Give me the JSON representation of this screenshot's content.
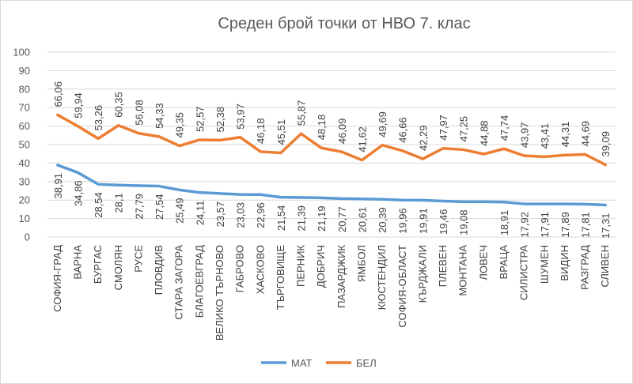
{
  "chart_data": {
    "type": "line",
    "title": "Среден брой точки от НВО 7. клас",
    "categories": [
      "СОФИЯ-ГРАД",
      "ВАРНА",
      "БУРГАС",
      "СМОЛЯН",
      "РУСЕ",
      "ПЛОВДИВ",
      "СТАРА ЗАГОРА",
      "БЛАГОЕВГРАД",
      "ВЕЛИКО ТЪРНОВО",
      "ГАБРОВО",
      "ХАСКОВО",
      "ТЪРГОВИЩЕ",
      "ПЕРНИК",
      "ДОБРИЧ",
      "ПАЗАРДЖИК",
      "ЯМБОЛ",
      "КЮСТЕНДИЛ",
      "СОФИЯ-ОБЛАСТ",
      "КЪРДЖАЛИ",
      "ПЛЕВЕН",
      "МОНТАНА",
      "ЛОВЕЧ",
      "ВРАЦА",
      "СИЛИСТРА",
      "ШУМЕН",
      "ВИДИН",
      "РАЗГРАД",
      "СЛИВЕН"
    ],
    "series": [
      {
        "name": "МАТ",
        "color": "#5b9bd5",
        "values": [
          38.91,
          34.86,
          28.54,
          28.1,
          27.79,
          27.54,
          25.49,
          24.11,
          23.57,
          23.03,
          22.96,
          21.54,
          21.39,
          21.19,
          20.77,
          20.61,
          20.39,
          19.96,
          19.91,
          19.46,
          19.08,
          19.08,
          18.91,
          17.92,
          17.91,
          17.89,
          17.81,
          17.31
        ]
      },
      {
        "name": "БЕЛ",
        "color": "#ed7d31",
        "values": [
          66.06,
          59.94,
          53.26,
          60.35,
          56.08,
          54.33,
          49.35,
          52.57,
          52.38,
          53.97,
          46.18,
          45.51,
          55.87,
          48.18,
          46.09,
          41.62,
          49.69,
          46.66,
          42.29,
          47.97,
          47.25,
          44.88,
          47.74,
          43.97,
          43.41,
          44.31,
          44.69,
          39.09
        ]
      }
    ],
    "mat_labels": [
      "38,91",
      "34,86",
      "28,54",
      "28,1",
      "27,79",
      "27,54",
      "25,49",
      "24,11",
      "23,57",
      "23,03",
      "22,96",
      "21,54",
      "21,39",
      "21,19",
      "20,77",
      "20,61",
      "20,39",
      "19,96",
      "19,91",
      "19,46",
      "19,08",
      "",
      "18,91",
      "17,92",
      "17,91",
      "17,89",
      "17,81",
      "17,31"
    ],
    "bel_labels": [
      "66,06",
      "59,94",
      "53,26",
      "60,35",
      "56,08",
      "54,33",
      "49,35",
      "52,57",
      "52,38",
      "53,97",
      "46,18",
      "45,51",
      "55,87",
      "48,18",
      "46,09",
      "41,62",
      "49,69",
      "46,66",
      "42,29",
      "47,97",
      "47,25",
      "44,88",
      "47,74",
      "43,97",
      "43,41",
      "44,31",
      "44,69",
      "39,09"
    ],
    "ylim": [
      0,
      100
    ],
    "yticks": [
      0,
      10,
      20,
      30,
      40,
      50,
      60,
      70,
      80,
      90,
      100
    ],
    "grid": true,
    "legend": "bottom",
    "xlabel": "",
    "ylabel": ""
  }
}
